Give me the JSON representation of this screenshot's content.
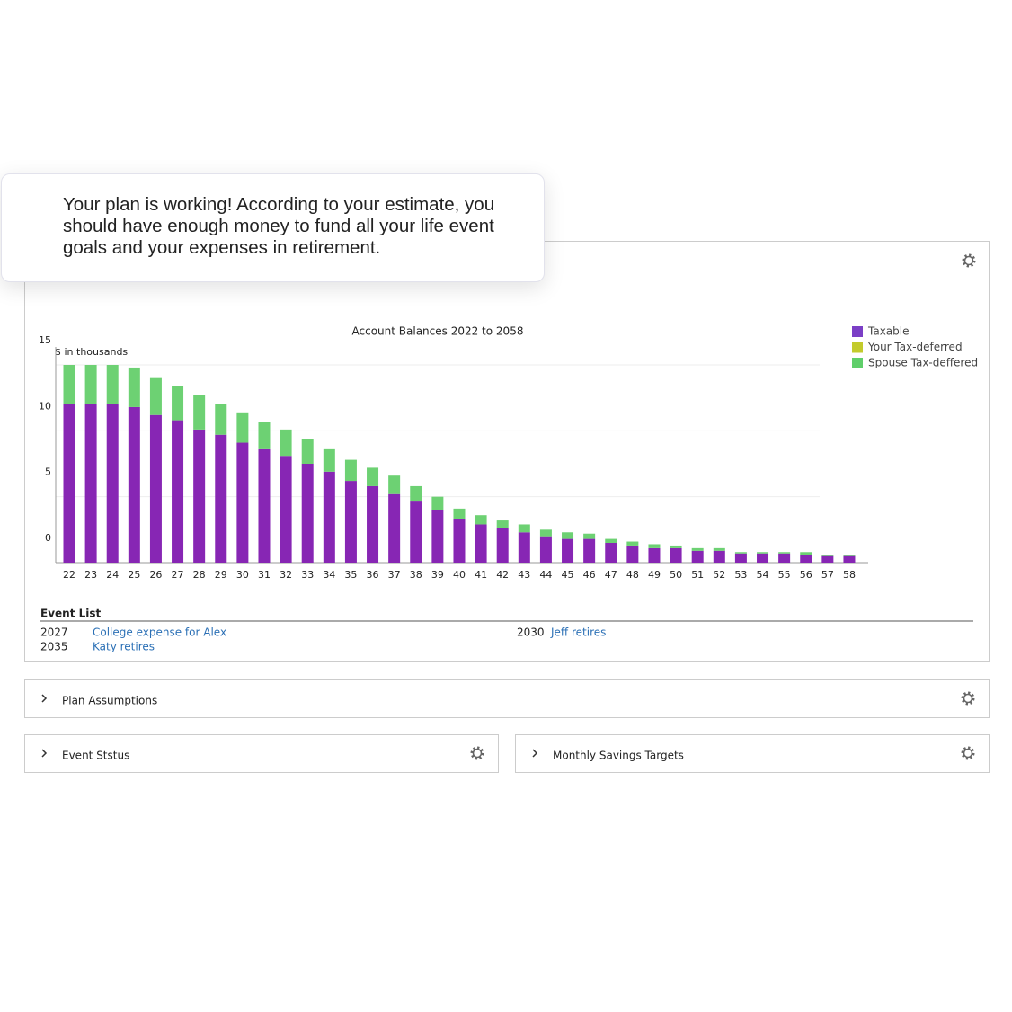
{
  "banner": {
    "message": "Your plan is working! According to your estimate, you should have enough money to fund all your life event goals and your expenses in retirement."
  },
  "chart_data": {
    "type": "stacked_bar",
    "title": "Account Balances 2022 to 2058",
    "y_label": "$ in thousands",
    "categories": [
      "22",
      "23",
      "24",
      "25",
      "26",
      "27",
      "28",
      "29",
      "30",
      "31",
      "32",
      "33",
      "34",
      "35",
      "36",
      "37",
      "38",
      "39",
      "40",
      "41",
      "42",
      "43",
      "44",
      "45",
      "46",
      "47",
      "48",
      "49",
      "50",
      "51",
      "52",
      "53",
      "54",
      "55",
      "56",
      "57",
      "58"
    ],
    "series": [
      {
        "name": "Taxable",
        "color": "#8726b4",
        "legend_color": "#7b3fc6",
        "values": [
          12,
          12,
          12,
          11.8,
          11.2,
          10.8,
          10.1,
          9.7,
          9.1,
          8.6,
          8.1,
          7.5,
          6.9,
          6.2,
          5.8,
          5.2,
          4.7,
          4.0,
          3.3,
          2.9,
          2.6,
          2.3,
          2.0,
          1.8,
          1.8,
          1.5,
          1.3,
          1.1,
          1.1,
          0.9,
          0.9,
          0.7,
          0.7,
          0.7,
          0.6,
          0.5,
          0.5
        ]
      },
      {
        "name": "Your Tax-deferred",
        "color": "#c3cb2c",
        "legend_color": "#c3cb2c",
        "values": [
          0,
          0,
          0,
          0,
          0,
          0,
          0,
          0,
          0,
          0,
          0,
          0,
          0,
          0,
          0,
          0,
          0,
          0,
          0,
          0,
          0,
          0,
          0,
          0,
          0,
          0,
          0,
          0,
          0,
          0,
          0,
          0,
          0,
          0,
          0,
          0,
          0
        ]
      },
      {
        "name": "Spouse Tax-deffered",
        "color": "#6dd173",
        "legend_color": "#5fcf6a",
        "values": [
          3,
          3,
          3,
          3.0,
          2.8,
          2.6,
          2.6,
          2.3,
          2.3,
          2.1,
          2.0,
          1.9,
          1.7,
          1.6,
          1.4,
          1.4,
          1.1,
          1.0,
          0.8,
          0.7,
          0.6,
          0.6,
          0.5,
          0.5,
          0.4,
          0.3,
          0.3,
          0.3,
          0.2,
          0.2,
          0.2,
          0.1,
          0.1,
          0.1,
          0.2,
          0.1,
          0.1
        ]
      }
    ],
    "ylim": [
      0,
      15
    ],
    "yticks": [
      0,
      5,
      10,
      15
    ],
    "grid": true
  },
  "event_list": {
    "title": "Event List",
    "events": [
      {
        "year": 2027,
        "name": "College expense for Alex"
      },
      {
        "year": 2030,
        "name": "Jeff retires"
      },
      {
        "year": 2035,
        "name": "Katy retires"
      }
    ]
  },
  "panels": [
    {
      "title": "Plan Assumptions"
    },
    {
      "title": "Event Ststus"
    },
    {
      "title": "Monthly Savings Targets"
    }
  ]
}
